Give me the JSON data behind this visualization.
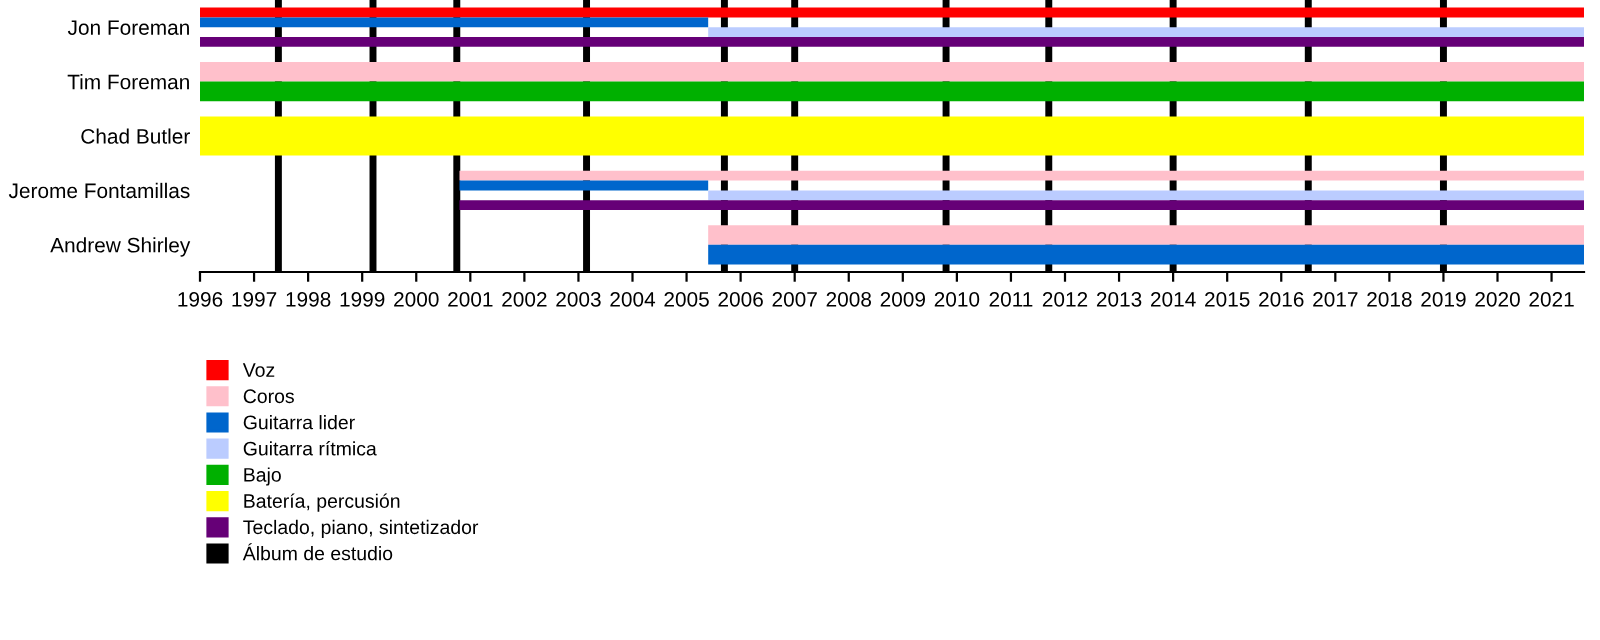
{
  "chart_data": {
    "type": "bar",
    "orientation": "horizontal",
    "categories": [
      "Jon Foreman",
      "Tim Foreman",
      "Chad Butler",
      "Jerome Fontamillas",
      "Andrew Shirley"
    ],
    "xlim": [
      1996,
      2021.6
    ],
    "xticks": [
      1996,
      1997,
      1998,
      1999,
      2000,
      2001,
      2002,
      2003,
      2004,
      2005,
      2006,
      2007,
      2008,
      2009,
      2010,
      2011,
      2012,
      2013,
      2014,
      2015,
      2016,
      2017,
      2018,
      2019,
      2020,
      2021
    ],
    "series": [
      {
        "name": "Voz",
        "color": "#ff0000",
        "base": [
          1996,
          null,
          null,
          null,
          null
        ],
        "values": [
          25.6,
          null,
          null,
          null,
          null
        ]
      },
      {
        "name": "Coros",
        "color": "#ffc0cb",
        "base": [
          null,
          1996,
          null,
          2000.8,
          2005.4
        ],
        "values": [
          null,
          25.6,
          null,
          20.8,
          16.2
        ]
      },
      {
        "name": "Guitarra lider",
        "color": "#0066cc",
        "base": [
          1996,
          null,
          null,
          2000.8,
          2005.4
        ],
        "values": [
          9.4,
          null,
          null,
          4.6,
          16.2
        ]
      },
      {
        "name": "Guitarra rítmica",
        "color": "#bbccff",
        "base": [
          2005.4,
          null,
          null,
          2005.4,
          null
        ],
        "values": [
          16.2,
          null,
          null,
          16.2,
          null
        ]
      },
      {
        "name": "Bajo",
        "color": "#00b000",
        "base": [
          null,
          1996,
          null,
          null,
          null
        ],
        "values": [
          null,
          25.6,
          null,
          null,
          null
        ]
      },
      {
        "name": "Batería, percusión",
        "color": "#ffff00",
        "base": [
          null,
          null,
          1996,
          null,
          null
        ],
        "values": [
          null,
          null,
          25.6,
          null,
          null
        ]
      },
      {
        "name": "Teclado, piano, sintetizador",
        "color": "#660077",
        "base": [
          1996,
          null,
          null,
          2000.8,
          null
        ],
        "values": [
          25.6,
          null,
          null,
          20.8,
          null
        ]
      }
    ],
    "ref_lines": [
      {
        "axis": "x",
        "value": 1997.45,
        "color": "#000000",
        "label": "Álbum de estudio"
      },
      {
        "axis": "x",
        "value": 1999.2,
        "color": "#000000"
      },
      {
        "axis": "x",
        "value": 2000.75,
        "color": "#000000"
      },
      {
        "axis": "x",
        "value": 2003.15,
        "color": "#000000"
      },
      {
        "axis": "x",
        "value": 2005.7,
        "color": "#000000"
      },
      {
        "axis": "x",
        "value": 2007.0,
        "color": "#000000"
      },
      {
        "axis": "x",
        "value": 2009.8,
        "color": "#000000"
      },
      {
        "axis": "x",
        "value": 2011.7,
        "color": "#000000"
      },
      {
        "axis": "x",
        "value": 2014.0,
        "color": "#000000"
      },
      {
        "axis": "x",
        "value": 2016.5,
        "color": "#000000"
      },
      {
        "axis": "x",
        "value": 2019.0,
        "color": "#000000"
      }
    ],
    "legend": "bottom left",
    "grid": false
  }
}
